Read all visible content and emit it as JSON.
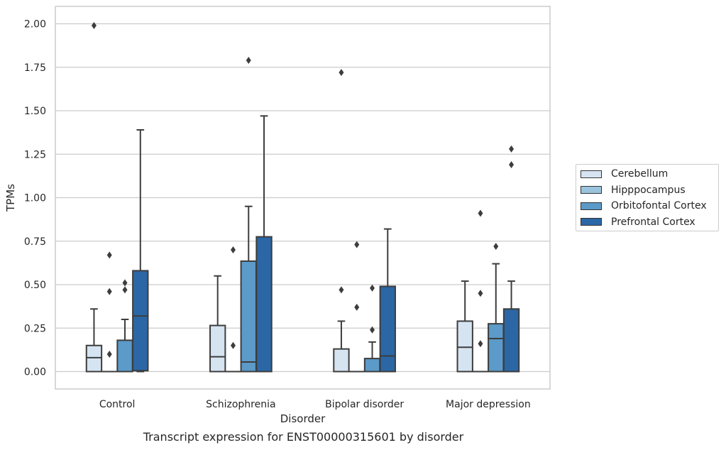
{
  "chart_data": {
    "type": "box",
    "title": "",
    "xlabel": "Disorder",
    "ylabel": "TPMs",
    "ylim": [
      -0.1,
      2.1
    ],
    "yticks": [
      "0.00",
      "0.25",
      "0.50",
      "0.75",
      "1.00",
      "1.25",
      "1.50",
      "1.75",
      "2.00"
    ],
    "grid": true,
    "legend_position": "right",
    "categories": [
      "Control",
      "Schizophrenia",
      "Bipolar disorder",
      "Major depression"
    ],
    "series": [
      {
        "name": "Cerebellum",
        "color": "#d6e4f2",
        "boxes": [
          {
            "whisker_low": 0,
            "q1": 0,
            "median": 0.08,
            "q3": 0.15,
            "whisker_high": 0.36,
            "outliers": [
              1.99
            ]
          },
          {
            "whisker_low": 0,
            "q1": 0,
            "median": 0.085,
            "q3": 0.265,
            "whisker_high": 0.55,
            "outliers": []
          },
          {
            "whisker_low": 0,
            "q1": 0,
            "median": 0,
            "q3": 0.13,
            "whisker_high": 0.29,
            "outliers": [
              0.47,
              1.72
            ]
          },
          {
            "whisker_low": 0,
            "q1": 0,
            "median": 0.14,
            "q3": 0.29,
            "whisker_high": 0.52,
            "outliers": []
          }
        ]
      },
      {
        "name": "Hipppocampus",
        "color": "#9ac4de",
        "boxes": [
          {
            "whisker_low": 0,
            "q1": 0,
            "median": 0,
            "q3": 0,
            "whisker_high": 0,
            "outliers": [
              0.1,
              0.46,
              0.67
            ]
          },
          {
            "whisker_low": 0,
            "q1": 0,
            "median": 0,
            "q3": 0,
            "whisker_high": 0,
            "outliers": [
              0.15,
              0.7
            ]
          },
          {
            "whisker_low": 0,
            "q1": 0,
            "median": 0,
            "q3": 0,
            "whisker_high": 0,
            "outliers": [
              0.37,
              0.73
            ]
          },
          {
            "whisker_low": 0,
            "q1": 0,
            "median": 0,
            "q3": 0,
            "whisker_high": 0,
            "outliers": [
              0.16,
              0.45,
              0.91
            ]
          }
        ]
      },
      {
        "name": "Orbitofontal Cortex",
        "color": "#5b9ac9",
        "boxes": [
          {
            "whisker_low": 0,
            "q1": 0,
            "median": 0,
            "q3": 0.18,
            "whisker_high": 0.3,
            "outliers": [
              0.47,
              0.51
            ]
          },
          {
            "whisker_low": 0,
            "q1": 0,
            "median": 0.055,
            "q3": 0.635,
            "whisker_high": 0.95,
            "outliers": [
              1.79
            ]
          },
          {
            "whisker_low": 0,
            "q1": 0,
            "median": 0,
            "q3": 0.075,
            "whisker_high": 0.17,
            "outliers": [
              0.24,
              0.48
            ]
          },
          {
            "whisker_low": 0,
            "q1": 0,
            "median": 0.19,
            "q3": 0.275,
            "whisker_high": 0.62,
            "outliers": [
              0.72
            ]
          }
        ]
      },
      {
        "name": "Prefrontal Cortex",
        "color": "#2b67a5",
        "boxes": [
          {
            "whisker_low": 0,
            "q1": 0.005,
            "median": 0.32,
            "q3": 0.58,
            "whisker_high": 1.39,
            "outliers": []
          },
          {
            "whisker_low": 0,
            "q1": 0,
            "median": 0,
            "q3": 0.775,
            "whisker_high": 1.47,
            "outliers": []
          },
          {
            "whisker_low": 0,
            "q1": 0,
            "median": 0.09,
            "q3": 0.49,
            "whisker_high": 0.82,
            "outliers": []
          },
          {
            "whisker_low": 0,
            "q1": 0,
            "median": 0,
            "q3": 0.36,
            "whisker_high": 0.52,
            "outliers": [
              1.19,
              1.28
            ]
          }
        ]
      }
    ]
  },
  "caption": "Transcript expression for ENST00000315601 by disorder"
}
